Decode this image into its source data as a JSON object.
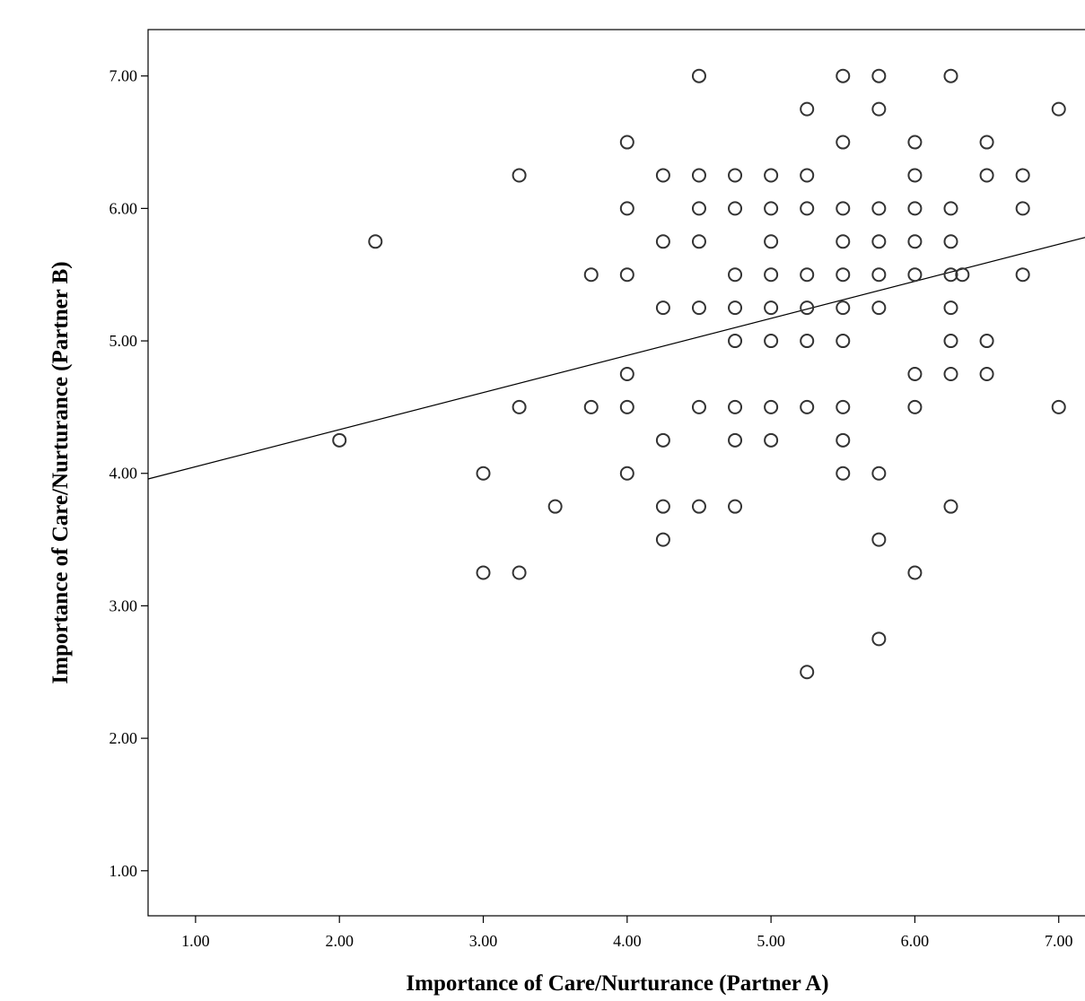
{
  "chart_data": {
    "type": "scatter",
    "xlabel": "Importance of Care/Nurturance (Partner A)",
    "ylabel": "Importance of Care/Nurturance (Partner B)",
    "xlim": [
      0.67,
      7.22
    ],
    "ylim": [
      0.66,
      7.35
    ],
    "x_ticks": [
      "1.00",
      "2.00",
      "3.00",
      "4.00",
      "5.00",
      "6.00",
      "7.00"
    ],
    "y_ticks": [
      "1.00",
      "2.00",
      "3.00",
      "4.00",
      "5.00",
      "6.00",
      "7.00"
    ],
    "grid": false,
    "legend": "none",
    "marker": "hollow-circle",
    "fit_line": {
      "type": "linear",
      "intercept": 3.77,
      "slope": 0.28
    },
    "points": [
      [
        2.0,
        4.25
      ],
      [
        2.25,
        5.75
      ],
      [
        3.0,
        4.0
      ],
      [
        3.0,
        3.25
      ],
      [
        3.25,
        6.25
      ],
      [
        3.25,
        4.5
      ],
      [
        3.25,
        3.25
      ],
      [
        3.5,
        3.75
      ],
      [
        3.75,
        5.5
      ],
      [
        3.75,
        4.5
      ],
      [
        4.0,
        6.5
      ],
      [
        4.0,
        6.0
      ],
      [
        4.0,
        5.5
      ],
      [
        4.0,
        4.75
      ],
      [
        4.0,
        4.5
      ],
      [
        4.0,
        4.0
      ],
      [
        4.25,
        6.25
      ],
      [
        4.25,
        5.75
      ],
      [
        4.25,
        5.25
      ],
      [
        4.25,
        4.25
      ],
      [
        4.25,
        3.75
      ],
      [
        4.25,
        3.5
      ],
      [
        4.5,
        7.0
      ],
      [
        4.5,
        6.25
      ],
      [
        4.5,
        6.0
      ],
      [
        4.5,
        5.75
      ],
      [
        4.5,
        5.25
      ],
      [
        4.5,
        4.5
      ],
      [
        4.5,
        3.75
      ],
      [
        4.75,
        6.25
      ],
      [
        4.75,
        6.0
      ],
      [
        4.75,
        5.5
      ],
      [
        4.75,
        5.25
      ],
      [
        4.75,
        5.0
      ],
      [
        4.75,
        4.5
      ],
      [
        4.75,
        4.25
      ],
      [
        4.75,
        3.75
      ],
      [
        5.0,
        6.25
      ],
      [
        5.0,
        6.0
      ],
      [
        5.0,
        5.75
      ],
      [
        5.0,
        5.5
      ],
      [
        5.0,
        5.25
      ],
      [
        5.0,
        5.0
      ],
      [
        5.0,
        4.5
      ],
      [
        5.0,
        4.25
      ],
      [
        5.25,
        6.75
      ],
      [
        5.25,
        6.25
      ],
      [
        5.25,
        6.0
      ],
      [
        5.25,
        5.5
      ],
      [
        5.25,
        5.25
      ],
      [
        5.25,
        5.0
      ],
      [
        5.25,
        4.5
      ],
      [
        5.25,
        2.5
      ],
      [
        5.5,
        7.0
      ],
      [
        5.5,
        6.5
      ],
      [
        5.5,
        6.0
      ],
      [
        5.5,
        5.75
      ],
      [
        5.5,
        5.5
      ],
      [
        5.5,
        5.25
      ],
      [
        5.5,
        5.0
      ],
      [
        5.5,
        4.5
      ],
      [
        5.5,
        4.25
      ],
      [
        5.5,
        4.0
      ],
      [
        5.75,
        7.0
      ],
      [
        5.75,
        6.75
      ],
      [
        5.75,
        6.0
      ],
      [
        5.75,
        5.75
      ],
      [
        5.75,
        5.5
      ],
      [
        5.75,
        5.25
      ],
      [
        5.75,
        4.0
      ],
      [
        5.75,
        3.5
      ],
      [
        5.75,
        2.75
      ],
      [
        6.0,
        6.5
      ],
      [
        6.0,
        6.25
      ],
      [
        6.0,
        6.0
      ],
      [
        6.0,
        5.75
      ],
      [
        6.0,
        5.5
      ],
      [
        6.0,
        4.75
      ],
      [
        6.0,
        4.5
      ],
      [
        6.0,
        3.25
      ],
      [
        6.25,
        7.0
      ],
      [
        6.25,
        6.0
      ],
      [
        6.25,
        5.75
      ],
      [
        6.25,
        5.5
      ],
      [
        6.25,
        5.25
      ],
      [
        6.25,
        5.0
      ],
      [
        6.25,
        4.75
      ],
      [
        6.25,
        3.75
      ],
      [
        6.33,
        5.5
      ],
      [
        6.5,
        6.5
      ],
      [
        6.5,
        6.25
      ],
      [
        6.5,
        5.0
      ],
      [
        6.5,
        4.75
      ],
      [
        6.75,
        6.25
      ],
      [
        6.75,
        6.0
      ],
      [
        6.75,
        5.5
      ],
      [
        7.0,
        6.75
      ],
      [
        7.0,
        4.5
      ]
    ]
  }
}
